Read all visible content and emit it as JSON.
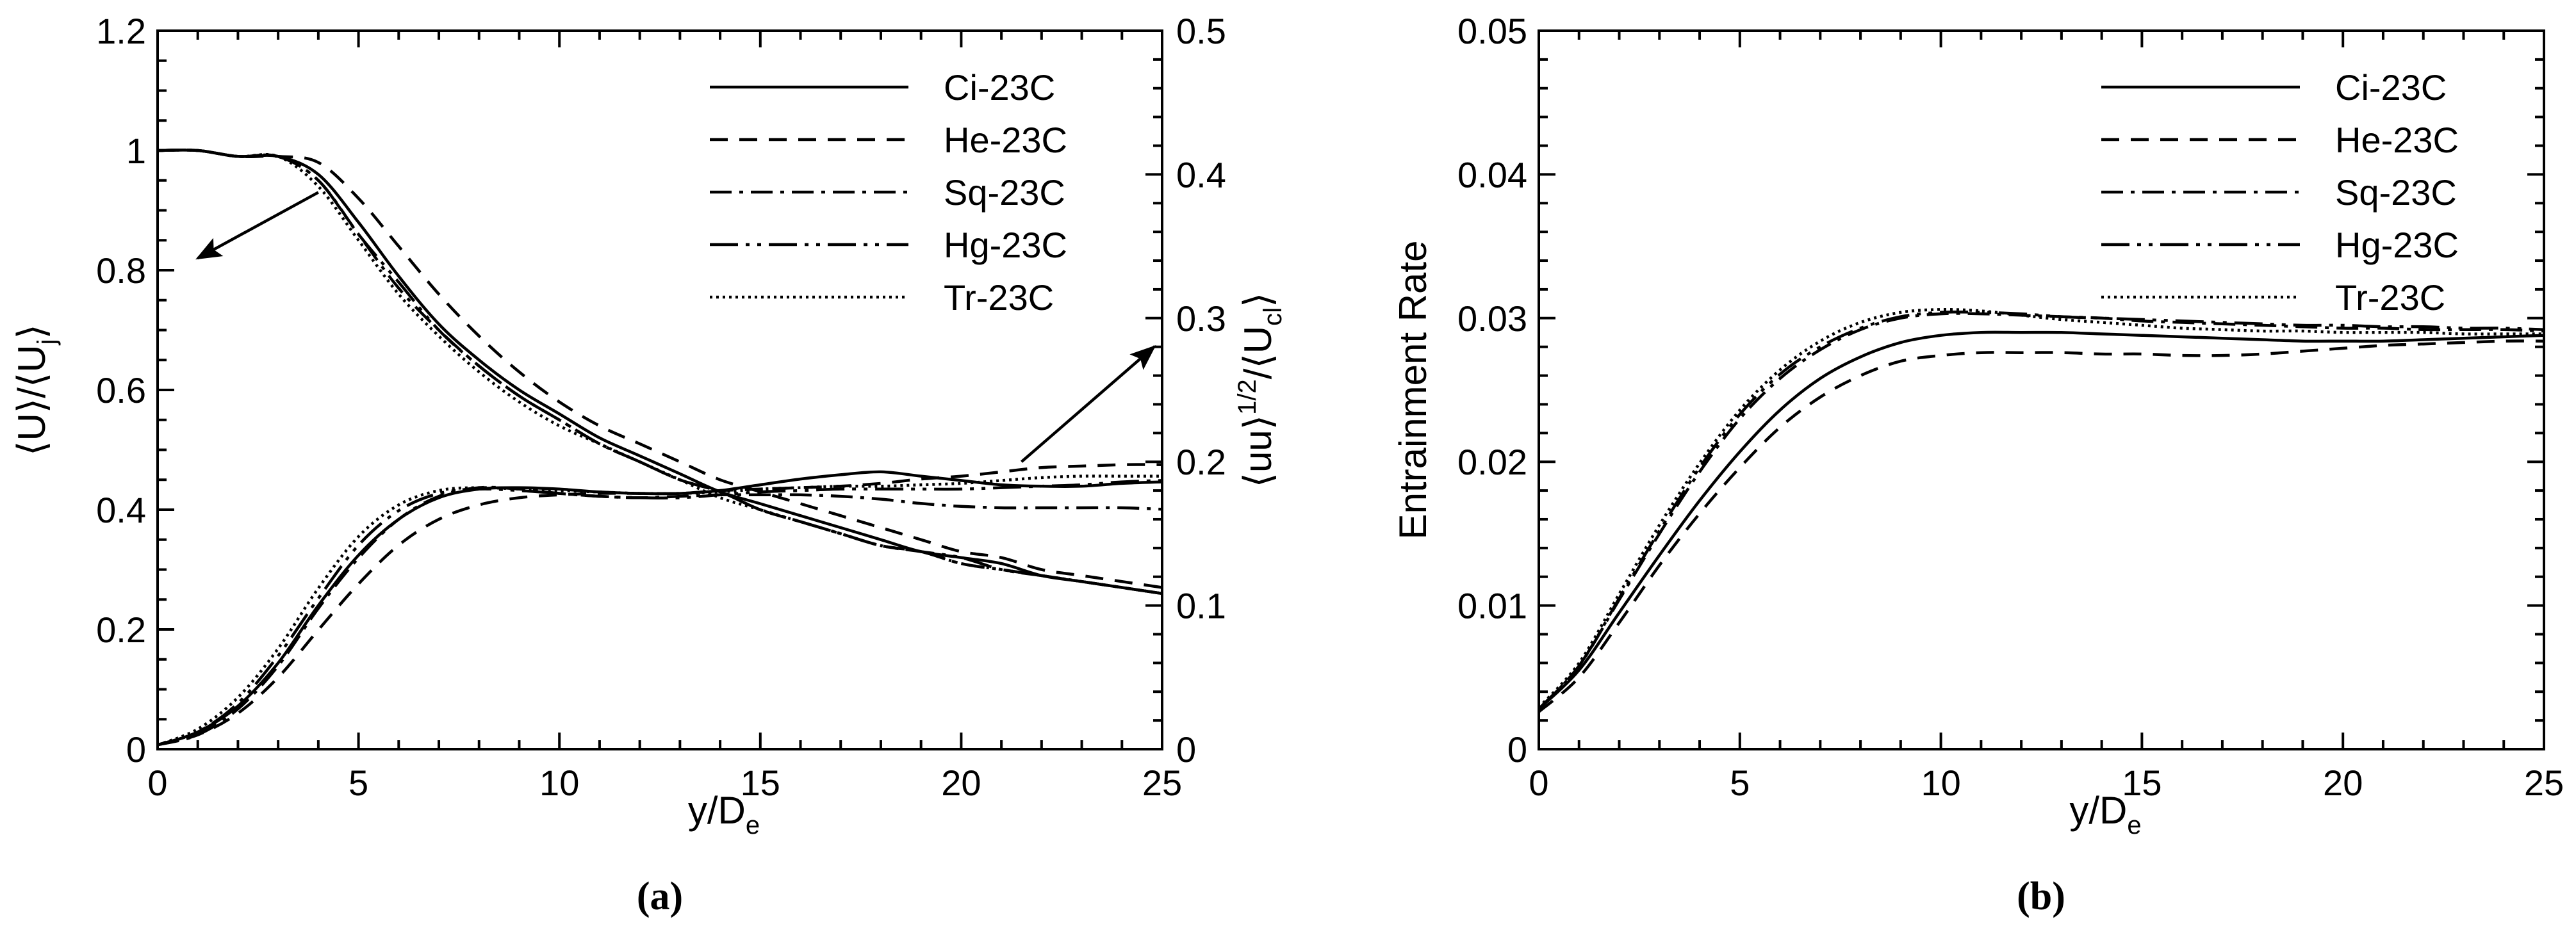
{
  "figure": {
    "caption_a": "(a)",
    "caption_b": "(b)"
  },
  "styles": {
    "Ci-23C": "solid",
    "He-23C": "dashed",
    "Sq-23C": "dashdot",
    "Hg-23C": "dashdotdot",
    "Tr-23C": "dotted"
  },
  "chart_data": [
    {
      "id": "a",
      "type": "line",
      "xlabel": "y/D",
      "xlabel_sub": "e",
      "ylabel": "⟨U⟩/⟨U",
      "ylabel_sub": "j",
      "ylabel_end": "⟩",
      "y2label": "⟨uu⟩",
      "y2label_sup": "1/2",
      "y2label_mid": "/⟨U",
      "y2label_sub": "cl",
      "y2label_end": "⟩",
      "xlim": [
        0,
        25
      ],
      "ylim": [
        0,
        1.2
      ],
      "y2lim": [
        0,
        0.5
      ],
      "xticks": [
        "0",
        "5",
        "10",
        "15",
        "20",
        "25"
      ],
      "yticks": [
        "0",
        "0.2",
        "0.4",
        "0.6",
        "0.8",
        "1",
        "1.2"
      ],
      "y2ticks": [
        "0",
        "0.1",
        "0.2",
        "0.3",
        "0.4",
        "0.5"
      ],
      "legend_position": "top-right",
      "legend": [
        "Ci-23C",
        "He-23C",
        "Sq-23C",
        "Hg-23C",
        "Tr-23C"
      ],
      "series": [
        {
          "name": "Ci-23C",
          "axis": "left",
          "x": [
            0,
            1,
            2,
            3,
            4,
            5,
            6,
            7,
            8,
            9,
            10,
            11,
            12,
            13,
            14,
            15,
            16,
            17,
            18,
            19,
            20,
            21,
            22,
            23,
            24,
            25
          ],
          "y": [
            1.0,
            1.0,
            0.99,
            0.99,
            0.96,
            0.88,
            0.79,
            0.71,
            0.65,
            0.6,
            0.56,
            0.52,
            0.49,
            0.46,
            0.43,
            0.41,
            0.39,
            0.37,
            0.35,
            0.33,
            0.32,
            0.31,
            0.29,
            0.28,
            0.27,
            0.26
          ]
        },
        {
          "name": "He-23C",
          "axis": "left",
          "x": [
            0,
            1,
            2,
            3,
            4,
            5,
            6,
            7,
            8,
            9,
            10,
            11,
            12,
            13,
            14,
            15,
            16,
            17,
            18,
            19,
            20,
            21,
            22,
            23,
            24,
            25
          ],
          "y": [
            1.0,
            1.0,
            0.99,
            0.99,
            0.98,
            0.92,
            0.84,
            0.76,
            0.69,
            0.63,
            0.58,
            0.54,
            0.51,
            0.48,
            0.45,
            0.43,
            0.41,
            0.39,
            0.37,
            0.35,
            0.33,
            0.32,
            0.3,
            0.29,
            0.28,
            0.27
          ]
        },
        {
          "name": "Sq-23C",
          "axis": "left",
          "x": [
            0,
            1,
            2,
            3,
            4,
            5,
            6,
            7,
            8,
            9,
            10,
            11,
            12,
            13,
            14,
            15,
            16,
            17,
            18,
            19,
            20,
            21,
            22,
            23,
            24,
            25
          ],
          "y": [
            1.0,
            1.0,
            0.99,
            0.99,
            0.95,
            0.86,
            0.77,
            0.7,
            0.64,
            0.59,
            0.55,
            0.51,
            0.48,
            0.45,
            0.43,
            0.4,
            0.38,
            0.36,
            0.34,
            0.33,
            0.31,
            0.3,
            0.29,
            0.28,
            0.27,
            0.26
          ]
        },
        {
          "name": "Hg-23C",
          "axis": "left",
          "x": [
            0,
            1,
            2,
            3,
            4,
            5,
            6,
            7,
            8,
            9,
            10,
            11,
            12,
            13,
            14,
            15,
            16,
            17,
            18,
            19,
            20,
            21,
            22,
            23,
            24,
            25
          ],
          "y": [
            1.0,
            1.0,
            0.99,
            0.99,
            0.95,
            0.86,
            0.78,
            0.7,
            0.64,
            0.59,
            0.55,
            0.51,
            0.48,
            0.45,
            0.43,
            0.4,
            0.38,
            0.36,
            0.34,
            0.33,
            0.32,
            0.3,
            0.29,
            0.28,
            0.27,
            0.26
          ]
        },
        {
          "name": "Tr-23C",
          "axis": "left",
          "x": [
            0,
            1,
            2,
            3,
            4,
            5,
            6,
            7,
            8,
            9,
            10,
            11,
            12,
            13,
            14,
            15,
            16,
            17,
            18,
            19,
            20,
            21,
            22,
            23,
            24,
            25
          ],
          "y": [
            1.0,
            1.0,
            0.99,
            0.99,
            0.94,
            0.85,
            0.76,
            0.69,
            0.63,
            0.58,
            0.54,
            0.51,
            0.48,
            0.45,
            0.42,
            0.4,
            0.38,
            0.36,
            0.34,
            0.33,
            0.31,
            0.3,
            0.29,
            0.28,
            0.27,
            0.26
          ]
        },
        {
          "name": "Ci-23C",
          "axis": "right",
          "x": [
            0,
            1,
            2,
            3,
            4,
            5,
            6,
            7,
            8,
            9,
            10,
            11,
            12,
            13,
            14,
            15,
            16,
            17,
            18,
            19,
            20,
            21,
            22,
            23,
            24,
            25
          ],
          "y": [
            0.003,
            0.012,
            0.03,
            0.06,
            0.1,
            0.135,
            0.16,
            0.175,
            0.181,
            0.182,
            0.181,
            0.179,
            0.178,
            0.178,
            0.18,
            0.184,
            0.188,
            0.191,
            0.193,
            0.19,
            0.187,
            0.184,
            0.183,
            0.183,
            0.185,
            0.186
          ]
        },
        {
          "name": "He-23C",
          "axis": "right",
          "x": [
            0,
            1,
            2,
            3,
            4,
            5,
            6,
            7,
            8,
            9,
            10,
            11,
            12,
            13,
            14,
            15,
            16,
            17,
            18,
            19,
            20,
            21,
            22,
            23,
            24,
            25
          ],
          "y": [
            0.003,
            0.01,
            0.025,
            0.05,
            0.083,
            0.115,
            0.142,
            0.16,
            0.17,
            0.175,
            0.177,
            0.178,
            0.178,
            0.178,
            0.18,
            0.181,
            0.182,
            0.183,
            0.185,
            0.188,
            0.19,
            0.193,
            0.196,
            0.197,
            0.198,
            0.198
          ]
        },
        {
          "name": "Sq-23C",
          "axis": "right",
          "x": [
            0,
            1,
            2,
            3,
            4,
            5,
            6,
            7,
            8,
            9,
            10,
            11,
            12,
            13,
            14,
            15,
            16,
            17,
            18,
            19,
            20,
            21,
            22,
            23,
            24,
            25
          ],
          "y": [
            0.003,
            0.01,
            0.028,
            0.058,
            0.098,
            0.133,
            0.16,
            0.176,
            0.182,
            0.181,
            0.178,
            0.176,
            0.175,
            0.176,
            0.177,
            0.177,
            0.177,
            0.176,
            0.174,
            0.171,
            0.169,
            0.168,
            0.168,
            0.168,
            0.168,
            0.167
          ]
        },
        {
          "name": "Hg-23C",
          "axis": "right",
          "x": [
            0,
            1,
            2,
            3,
            4,
            5,
            6,
            7,
            8,
            9,
            10,
            11,
            12,
            13,
            14,
            15,
            16,
            17,
            18,
            19,
            20,
            21,
            22,
            23,
            24,
            25
          ],
          "y": [
            0.003,
            0.012,
            0.032,
            0.065,
            0.105,
            0.142,
            0.166,
            0.178,
            0.181,
            0.18,
            0.178,
            0.176,
            0.175,
            0.175,
            0.177,
            0.179,
            0.18,
            0.181,
            0.181,
            0.181,
            0.181,
            0.182,
            0.183,
            0.184,
            0.186,
            0.187
          ]
        },
        {
          "name": "Tr-23C",
          "axis": "right",
          "x": [
            0,
            1,
            2,
            3,
            4,
            5,
            6,
            7,
            8,
            9,
            10,
            11,
            12,
            13,
            14,
            15,
            16,
            17,
            18,
            19,
            20,
            21,
            22,
            23,
            24,
            25
          ],
          "y": [
            0.003,
            0.014,
            0.036,
            0.07,
            0.112,
            0.148,
            0.17,
            0.18,
            0.182,
            0.181,
            0.18,
            0.179,
            0.178,
            0.178,
            0.179,
            0.181,
            0.182,
            0.183,
            0.183,
            0.184,
            0.185,
            0.187,
            0.189,
            0.19,
            0.19,
            0.19
          ]
        }
      ],
      "annotations": [
        {
          "type": "arrow",
          "from": [
            4,
            0.93
          ],
          "to": [
            1,
            0.82
          ],
          "axis": "left"
        },
        {
          "type": "arrow",
          "from": [
            21.5,
            0.2
          ],
          "to": [
            24.8,
            0.28
          ],
          "axis": "right"
        }
      ]
    },
    {
      "id": "b",
      "type": "line",
      "xlabel": "y/D",
      "xlabel_sub": "e",
      "ylabel": "Entrainment Rate",
      "xlim": [
        0,
        25
      ],
      "ylim": [
        0,
        0.05
      ],
      "xticks": [
        "0",
        "5",
        "10",
        "15",
        "20",
        "25"
      ],
      "yticks": [
        "0",
        "0.01",
        "0.02",
        "0.03",
        "0.04",
        "0.05"
      ],
      "legend_position": "top-right",
      "legend": [
        "Ci-23C",
        "He-23C",
        "Sq-23C",
        "Hg-23C",
        "Tr-23C"
      ],
      "series": [
        {
          "name": "Ci-23C",
          "x": [
            0,
            1,
            2,
            3,
            4,
            5,
            6,
            7,
            8,
            9,
            10,
            11,
            12,
            13,
            14,
            15,
            16,
            17,
            18,
            19,
            20,
            21,
            22,
            23,
            24,
            25
          ],
          "y": [
            0.0028,
            0.0055,
            0.0095,
            0.0135,
            0.0173,
            0.0207,
            0.0236,
            0.0258,
            0.0273,
            0.0283,
            0.0288,
            0.029,
            0.029,
            0.029,
            0.0289,
            0.0288,
            0.0287,
            0.0286,
            0.0285,
            0.0284,
            0.0284,
            0.0284,
            0.0285,
            0.0286,
            0.0287,
            0.0288
          ]
        },
        {
          "name": "He-23C",
          "x": [
            0,
            1,
            2,
            3,
            4,
            5,
            6,
            7,
            8,
            9,
            10,
            11,
            12,
            13,
            14,
            15,
            16,
            17,
            18,
            19,
            20,
            21,
            22,
            23,
            24,
            25
          ],
          "y": [
            0.0026,
            0.005,
            0.0088,
            0.0128,
            0.0164,
            0.0196,
            0.0224,
            0.0245,
            0.026,
            0.027,
            0.0274,
            0.0276,
            0.0276,
            0.0276,
            0.0275,
            0.0275,
            0.0274,
            0.0274,
            0.0275,
            0.0277,
            0.0279,
            0.0281,
            0.0282,
            0.0283,
            0.0284,
            0.0284
          ]
        },
        {
          "name": "Sq-23C",
          "x": [
            0,
            1,
            2,
            3,
            4,
            5,
            6,
            7,
            8,
            9,
            10,
            11,
            12,
            13,
            14,
            15,
            16,
            17,
            18,
            19,
            20,
            21,
            22,
            23,
            24,
            25
          ],
          "y": [
            0.0028,
            0.0058,
            0.0104,
            0.015,
            0.0193,
            0.023,
            0.0258,
            0.0278,
            0.0292,
            0.03,
            0.0303,
            0.0303,
            0.0302,
            0.0301,
            0.03,
            0.0298,
            0.0297,
            0.0296,
            0.0295,
            0.0294,
            0.0293,
            0.0293,
            0.0292,
            0.0292,
            0.0292,
            0.0291
          ]
        },
        {
          "name": "Hg-23C",
          "x": [
            0,
            1,
            2,
            3,
            4,
            5,
            6,
            7,
            8,
            9,
            10,
            11,
            12,
            13,
            14,
            15,
            16,
            17,
            18,
            19,
            20,
            21,
            22,
            23,
            24,
            25
          ],
          "y": [
            0.0028,
            0.0058,
            0.0105,
            0.0152,
            0.0196,
            0.0233,
            0.0261,
            0.028,
            0.0293,
            0.0301,
            0.0304,
            0.0304,
            0.0303,
            0.0301,
            0.03,
            0.0299,
            0.0298,
            0.0297,
            0.0296,
            0.0295,
            0.0295,
            0.0294,
            0.0294,
            0.0293,
            0.0293,
            0.0292
          ]
        },
        {
          "name": "Tr-23C",
          "x": [
            0,
            1,
            2,
            3,
            4,
            5,
            6,
            7,
            8,
            9,
            10,
            11,
            12,
            13,
            14,
            15,
            16,
            17,
            18,
            19,
            20,
            21,
            22,
            23,
            24,
            25
          ],
          "y": [
            0.0029,
            0.006,
            0.0108,
            0.0156,
            0.0199,
            0.0236,
            0.0264,
            0.0284,
            0.0297,
            0.0304,
            0.0306,
            0.0305,
            0.0302,
            0.0299,
            0.0297,
            0.0295,
            0.0293,
            0.0292,
            0.0291,
            0.0291,
            0.029,
            0.029,
            0.029,
            0.0289,
            0.0289,
            0.0289
          ]
        }
      ]
    }
  ]
}
